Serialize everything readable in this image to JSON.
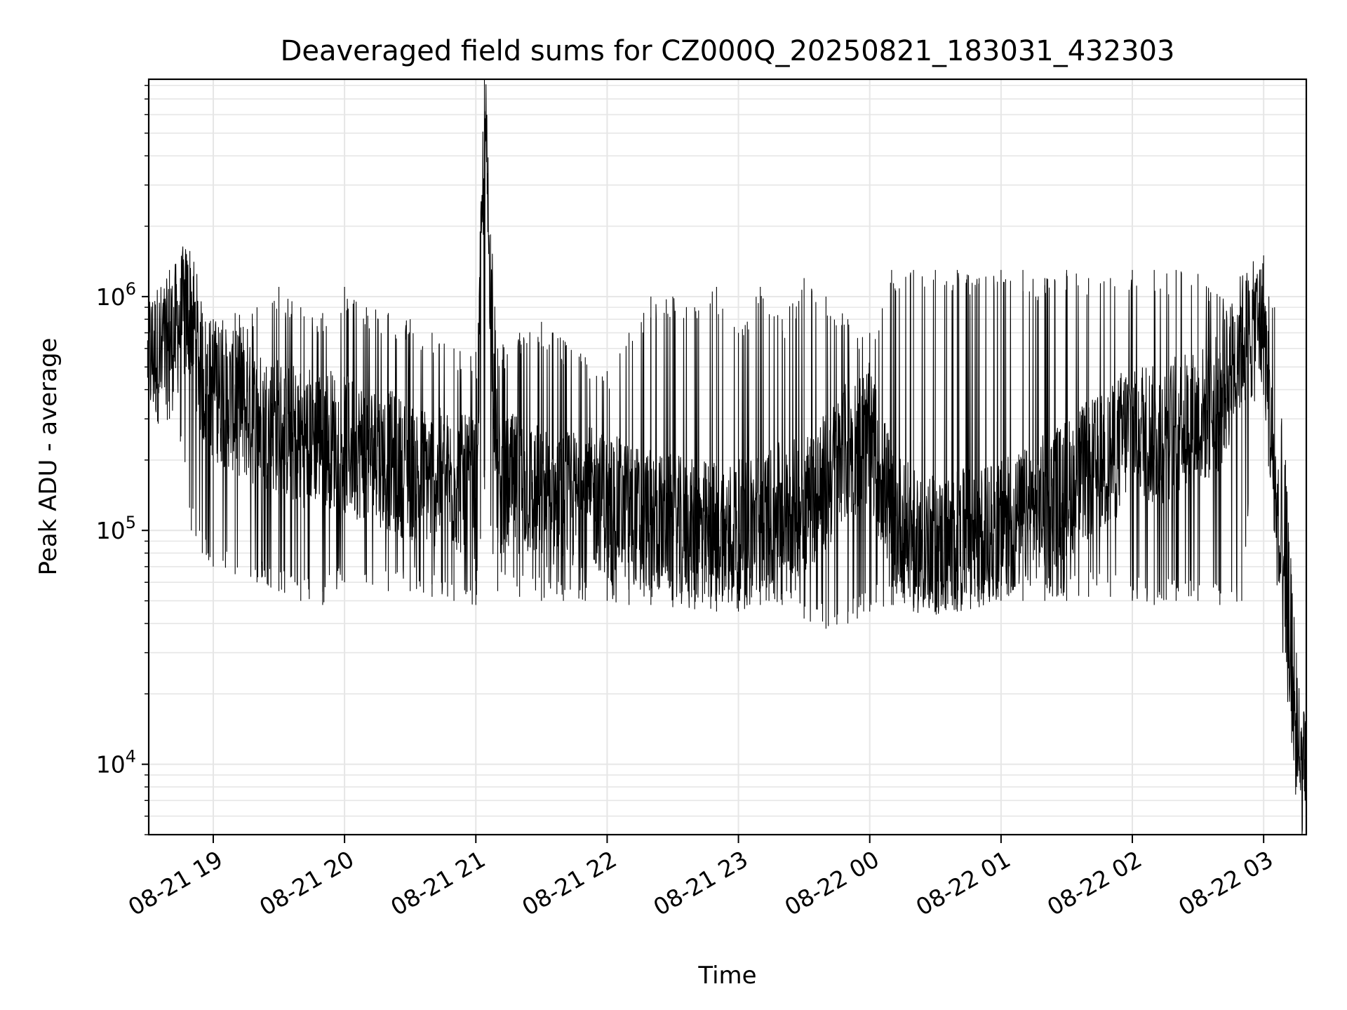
{
  "chart_data": {
    "type": "line",
    "title": "Deaveraged field sums for CZ000Q_20250821_183031_432303",
    "xlabel": "Time",
    "ylabel": "Peak ADU - average",
    "yscale": "log",
    "ylim": [
      5000,
      8500000
    ],
    "xlim": [
      "2025-08-21 18:30:31",
      "2025-08-22 03:19:30"
    ],
    "grid": true,
    "line_color": "#000000",
    "grid_color": "#e6e6e6",
    "x_ticks": [
      {
        "time": "2025-08-21 19:00",
        "label": "08-21 19"
      },
      {
        "time": "2025-08-21 20:00",
        "label": "08-21 20"
      },
      {
        "time": "2025-08-21 21:00",
        "label": "08-21 21"
      },
      {
        "time": "2025-08-21 22:00",
        "label": "08-21 22"
      },
      {
        "time": "2025-08-21 23:00",
        "label": "08-21 23"
      },
      {
        "time": "2025-08-22 00:00",
        "label": "08-22 00"
      },
      {
        "time": "2025-08-22 01:00",
        "label": "08-22 01"
      },
      {
        "time": "2025-08-22 02:00",
        "label": "08-22 02"
      },
      {
        "time": "2025-08-22 03:00",
        "label": "08-22 03"
      }
    ],
    "y_ticks": [
      {
        "value": 10000,
        "base": "10",
        "exp": "4"
      },
      {
        "value": 100000,
        "base": "10",
        "exp": "5"
      },
      {
        "value": 1000000,
        "base": "10",
        "exp": "6"
      }
    ],
    "series": [
      {
        "x": [
          "2025-08-21 18:30",
          "2025-08-21 18:40",
          "2025-08-21 18:45",
          "2025-08-21 18:50",
          "2025-08-21 18:55",
          "2025-08-21 19:00",
          "2025-08-21 19:10",
          "2025-08-21 19:20",
          "2025-08-21 19:30",
          "2025-08-21 19:40",
          "2025-08-21 19:50",
          "2025-08-21 20:00",
          "2025-08-21 20:10",
          "2025-08-21 20:20",
          "2025-08-21 20:30",
          "2025-08-21 20:40",
          "2025-08-21 20:50",
          "2025-08-21 21:00",
          "2025-08-21 21:04",
          "2025-08-21 21:10",
          "2025-08-21 21:20",
          "2025-08-21 21:30",
          "2025-08-21 21:40",
          "2025-08-21 21:50",
          "2025-08-21 22:00",
          "2025-08-21 22:10",
          "2025-08-21 22:20",
          "2025-08-21 22:30",
          "2025-08-21 22:40",
          "2025-08-21 22:50",
          "2025-08-21 23:00",
          "2025-08-21 23:10",
          "2025-08-21 23:20",
          "2025-08-21 23:30",
          "2025-08-21 23:40",
          "2025-08-21 23:50",
          "2025-08-22 00:00",
          "2025-08-22 00:10",
          "2025-08-22 00:20",
          "2025-08-22 00:30",
          "2025-08-22 00:40",
          "2025-08-22 00:50",
          "2025-08-22 01:00",
          "2025-08-22 01:10",
          "2025-08-22 01:20",
          "2025-08-22 01:30",
          "2025-08-22 01:40",
          "2025-08-22 01:50",
          "2025-08-22 02:00",
          "2025-08-22 02:10",
          "2025-08-22 02:20",
          "2025-08-22 02:30",
          "2025-08-22 02:40",
          "2025-08-22 02:50",
          "2025-08-22 03:00",
          "2025-08-22 03:05",
          "2025-08-22 03:10",
          "2025-08-22 03:15",
          "2025-08-22 03:19"
        ],
        "y": [
          550000,
          600000,
          800000,
          900000,
          450000,
          400000,
          350000,
          300000,
          280000,
          250000,
          260000,
          230000,
          220000,
          200000,
          180000,
          170000,
          160000,
          150000,
          6200000,
          150000,
          160000,
          140000,
          130000,
          140000,
          130000,
          120000,
          110000,
          105000,
          100000,
          100000,
          100000,
          110000,
          120000,
          130000,
          160000,
          220000,
          260000,
          120000,
          90000,
          85000,
          90000,
          95000,
          100000,
          110000,
          130000,
          150000,
          180000,
          200000,
          300000,
          250000,
          280000,
          300000,
          350000,
          650000,
          750000,
          150000,
          40000,
          12000,
          8000
        ],
        "min": [
          450000,
          300000,
          240000,
          100000,
          80000,
          70000,
          65000,
          60000,
          55000,
          50000,
          48000,
          60000,
          60000,
          55000,
          55000,
          52000,
          50000,
          48000,
          150000,
          55000,
          52000,
          50000,
          50000,
          50000,
          50000,
          48000,
          48000,
          47000,
          46000,
          45000,
          45000,
          48000,
          48000,
          42000,
          38000,
          40000,
          45000,
          48000,
          45000,
          45000,
          45000,
          47000,
          50000,
          50000,
          50000,
          50000,
          52000,
          52000,
          50000,
          48000,
          50000,
          50000,
          48000,
          50000,
          650000,
          100000,
          30000,
          8000,
          7000
        ],
        "max": [
          650000,
          1300000,
          1200000,
          900000,
          850000,
          800000,
          850000,
          900000,
          1100000,
          900000,
          850000,
          1100000,
          900000,
          850000,
          800000,
          700000,
          600000,
          580000,
          6200000,
          600000,
          700000,
          780000,
          650000,
          550000,
          480000,
          700000,
          1000000,
          1000000,
          900000,
          1100000,
          700000,
          1100000,
          800000,
          1200000,
          1000000,
          800000,
          700000,
          1300000,
          1300000,
          1300000,
          1300000,
          1200000,
          1300000,
          1300000,
          1200000,
          1300000,
          1200000,
          1200000,
          1300000,
          1300000,
          1300000,
          1250000,
          1000000,
          900000,
          1500000,
          900000,
          200000,
          30000,
          15000
        ]
      }
    ]
  }
}
